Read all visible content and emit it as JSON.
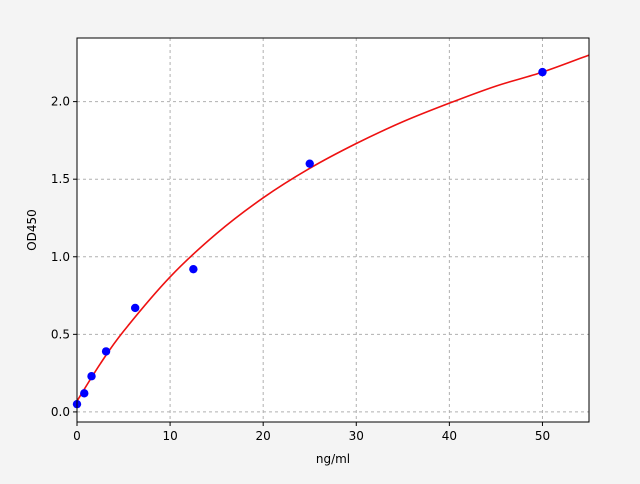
{
  "chart_data": {
    "type": "scatter",
    "title": "",
    "xlabel": "ng/ml",
    "ylabel": "OD450",
    "xlim": [
      0,
      55
    ],
    "ylim": [
      -0.065,
      2.41
    ],
    "xticks": [
      0,
      10,
      20,
      30,
      40,
      50
    ],
    "xtick_labels": [
      "0",
      "10",
      "20",
      "30",
      "40",
      "50"
    ],
    "yticks": [
      0.0,
      0.5,
      1.0,
      1.5,
      2.0
    ],
    "ytick_labels": [
      "0.0",
      "0.5",
      "1.0",
      "1.5",
      "2.0"
    ],
    "grid": true,
    "points": {
      "color": "#0000ff",
      "x": [
        0,
        0.78,
        1.56,
        3.125,
        6.25,
        12.5,
        25,
        50
      ],
      "y": [
        0.05,
        0.12,
        0.23,
        0.39,
        0.67,
        0.92,
        1.6,
        2.19
      ]
    },
    "curve": {
      "color": "#ee1111",
      "x": [
        0,
        2.5,
        5,
        10,
        15,
        20,
        25,
        30,
        35,
        40,
        45,
        50,
        55
      ],
      "y": [
        0.07,
        0.31,
        0.52,
        0.87,
        1.15,
        1.38,
        1.57,
        1.73,
        1.87,
        1.99,
        2.1,
        2.19,
        2.3
      ]
    }
  }
}
